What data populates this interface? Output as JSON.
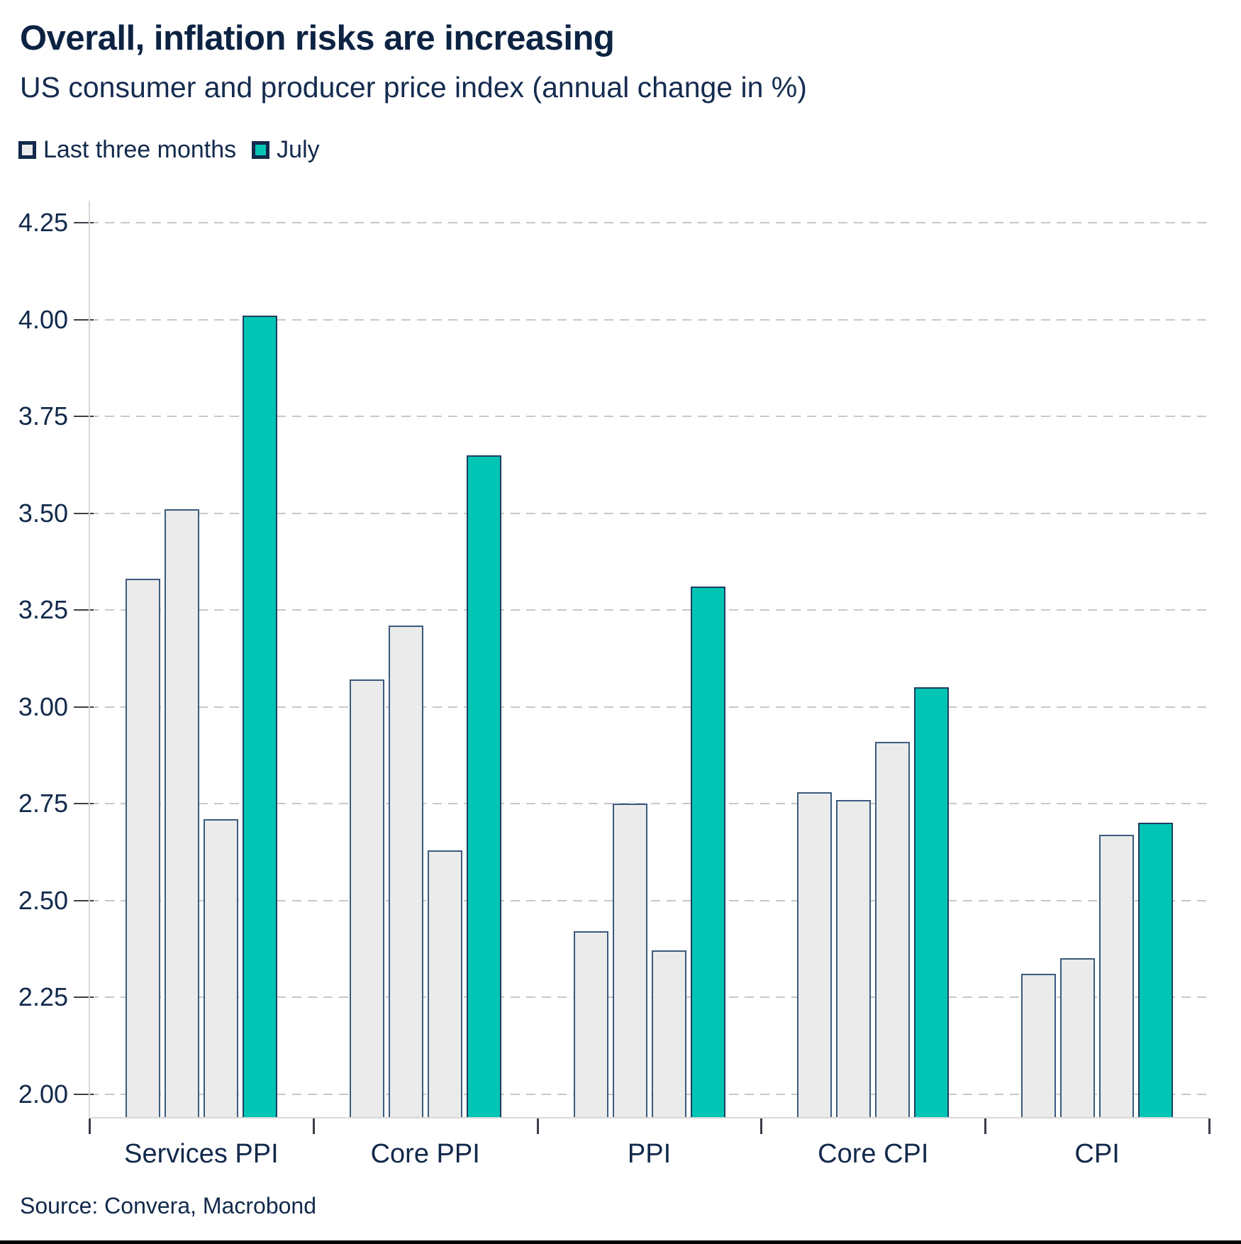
{
  "header": {
    "title": "Overall, inflation risks are increasing",
    "subtitle": "US consumer and producer price index (annual change in %)"
  },
  "legend": {
    "items": [
      {
        "label": "Last three months",
        "swatch_color": "#ebebeb"
      },
      {
        "label": "July",
        "swatch_color": "#00c5b4"
      }
    ]
  },
  "colors": {
    "navy_text": "#12294b",
    "teal_bar": "#00c5b4",
    "gray_bar": "#ebebeb",
    "bar_border": "#1e3e61",
    "gridline": "#c6c8ca",
    "axis_line": "#d6d8da",
    "tick": "#3a3f47"
  },
  "chart_data": {
    "type": "bar",
    "title": "Overall, inflation risks are increasing",
    "subtitle": "US consumer and producer price index (annual change in %)",
    "ylabel": "annual change in %",
    "xlabel": "",
    "categories": [
      "Services PPI",
      "Core PPI",
      "PPI",
      "Core CPI",
      "CPI"
    ],
    "series": [
      {
        "name": "Last three months",
        "color": "#ebebeb",
        "values_per_category": [
          [
            3.33,
            3.51,
            2.71
          ],
          [
            3.07,
            3.21,
            2.63
          ],
          [
            2.42,
            2.75,
            2.37
          ],
          [
            2.78,
            2.76,
            2.91
          ],
          [
            2.31,
            2.35,
            2.67
          ]
        ]
      },
      {
        "name": "July",
        "color": "#00c5b4",
        "values_per_category": [
          [
            4.01
          ],
          [
            3.65
          ],
          [
            3.31
          ],
          [
            3.05
          ],
          [
            2.7
          ]
        ]
      }
    ],
    "y_ticks": [
      2.0,
      2.25,
      2.5,
      2.75,
      3.0,
      3.25,
      3.5,
      3.75,
      4.0,
      4.25
    ],
    "y_tick_labels": [
      "2.00",
      "2.25",
      "2.50",
      "2.75",
      "3.00",
      "3.25",
      "3.50",
      "3.75",
      "4.00",
      "4.25"
    ],
    "ylim": [
      1.94,
      4.31
    ],
    "grid": "horizontal-dashed",
    "legend_position": "top-left"
  },
  "footer": {
    "source": "Source: Convera, Macrobond"
  }
}
